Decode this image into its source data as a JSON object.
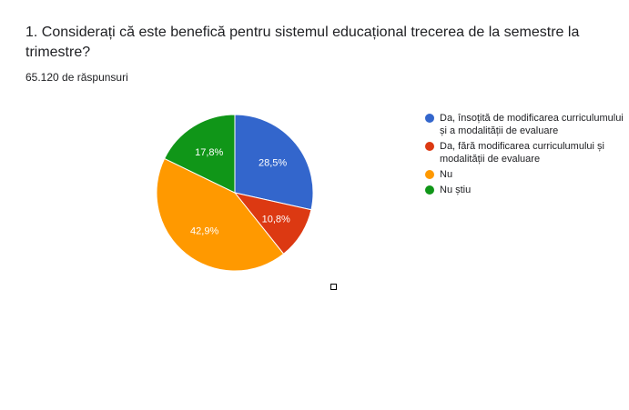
{
  "question": {
    "title": "1. Considerați că este benefică pentru sistemul educațional trecerea de la semestre la trimestre?",
    "response_count": "65.120 de răspunsuri"
  },
  "chart_data": {
    "type": "pie",
    "start_angle_deg": 90,
    "slices": [
      {
        "label": "Da, însoțită de modificarea curriculumului și a modalității de evaluare",
        "value": 28.5,
        "display": "28,5%",
        "color": "#3366cc"
      },
      {
        "label": "Da, fără modificarea curriculumului și modalității de evaluare",
        "value": 10.8,
        "display": "10,8%",
        "color": "#dc3912"
      },
      {
        "label": "Nu",
        "value": 42.9,
        "display": "42,9%",
        "color": "#ff9900"
      },
      {
        "label": "Nu știu",
        "value": 17.8,
        "display": "17,8%",
        "color": "#109618"
      }
    ]
  }
}
